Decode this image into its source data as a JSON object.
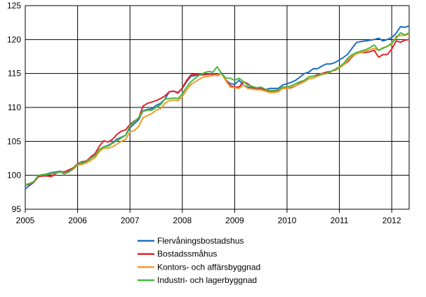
{
  "chart_data": {
    "type": "line",
    "title": "",
    "xlabel": "",
    "ylabel": "",
    "xlim": [
      2005,
      2012.333
    ],
    "ylim": [
      95,
      125
    ],
    "x_ticks": [
      "2005",
      "2006",
      "2007",
      "2008",
      "2009",
      "2010",
      "2011",
      "2012"
    ],
    "y_ticks": [
      "95",
      "100",
      "105",
      "110",
      "115",
      "120",
      "125"
    ],
    "grid": true,
    "legend_position": "bottom",
    "x_start": "2005-01",
    "x_frequency": "monthly",
    "series": [
      {
        "name": "Flervåningsbostadshus",
        "color": "#1f6fbf",
        "values": [
          98.0,
          98.5,
          99.0,
          100.0,
          100.1,
          100.2,
          100.4,
          100.5,
          100.6,
          100.4,
          100.7,
          101.0,
          101.6,
          101.8,
          102.0,
          102.5,
          102.9,
          103.8,
          104.2,
          104.4,
          104.8,
          105.3,
          105.6,
          105.9,
          107.0,
          107.6,
          108.2,
          109.5,
          109.7,
          109.8,
          110.3,
          110.6,
          111.2,
          112.3,
          112.4,
          112.2,
          112.8,
          113.8,
          114.6,
          114.7,
          114.8,
          114.8,
          114.9,
          115.0,
          114.8,
          115.1,
          114.0,
          113.5,
          113.4,
          114.0,
          113.3,
          113.0,
          112.9,
          112.8,
          112.8,
          112.6,
          112.8,
          112.8,
          112.8,
          113.3,
          113.5,
          113.7,
          114.0,
          114.5,
          115.0,
          115.2,
          115.7,
          115.7,
          116.1,
          116.4,
          116.4,
          116.6,
          117.0,
          117.4,
          117.9,
          118.8,
          119.6,
          119.7,
          119.8,
          119.9,
          120.0,
          120.2,
          119.8,
          120.0,
          120.3,
          120.9,
          121.9,
          121.8,
          122.0
        ]
      },
      {
        "name": "Bostadssmåhus",
        "color": "#e0252b",
        "values": [
          98.5,
          98.7,
          99.0,
          99.8,
          99.9,
          99.9,
          99.8,
          100.3,
          100.5,
          100.5,
          100.8,
          101.1,
          101.7,
          102.0,
          102.1,
          102.7,
          103.2,
          104.3,
          105.1,
          104.9,
          105.3,
          106.0,
          106.5,
          106.7,
          107.5,
          108.0,
          108.4,
          110.2,
          110.6,
          110.8,
          111.0,
          111.3,
          111.7,
          112.3,
          112.4,
          112.1,
          112.9,
          114.0,
          114.8,
          114.9,
          114.9,
          114.9,
          114.9,
          114.9,
          114.7,
          115.0,
          114.0,
          113.2,
          113.0,
          113.0,
          113.8,
          113.5,
          113.0,
          112.8,
          112.7,
          112.6,
          112.4,
          112.4,
          112.5,
          112.8,
          112.8,
          112.9,
          113.2,
          113.6,
          114.0,
          114.5,
          114.6,
          114.8,
          115.0,
          115.2,
          115.3,
          115.5,
          115.8,
          116.3,
          116.8,
          117.5,
          118.0,
          118.1,
          118.1,
          118.2,
          118.4,
          117.4,
          117.8,
          117.8,
          118.6,
          119.8,
          119.6,
          119.9,
          120.0
        ]
      },
      {
        "name": "Kontors- och affärsbyggnad",
        "color": "#f59a2c",
        "values": [
          98.6,
          98.8,
          99.1,
          100.0,
          100.1,
          100.1,
          100.2,
          100.4,
          100.5,
          100.3,
          100.5,
          100.9,
          101.5,
          101.6,
          101.8,
          102.2,
          102.6,
          103.5,
          104.0,
          104.0,
          104.2,
          104.6,
          105.0,
          105.3,
          106.4,
          106.6,
          107.2,
          108.5,
          108.8,
          109.1,
          109.6,
          109.8,
          110.6,
          111.0,
          111.1,
          111.0,
          111.6,
          112.6,
          113.4,
          113.8,
          114.2,
          114.5,
          114.6,
          114.7,
          114.8,
          115.0,
          113.9,
          113.0,
          112.9,
          112.8,
          113.3,
          112.8,
          112.7,
          112.6,
          112.6,
          112.4,
          112.2,
          112.2,
          112.3,
          112.8,
          112.8,
          113.0,
          113.2,
          113.5,
          113.8,
          114.2,
          114.3,
          114.6,
          114.8,
          115.0,
          115.2,
          115.6,
          115.8,
          116.3,
          117.0,
          117.6,
          117.9,
          118.1,
          118.3,
          118.5,
          118.7,
          118.4,
          118.8,
          119.0,
          119.3,
          120.5,
          120.6,
          120.6,
          120.8
        ]
      },
      {
        "name": "Industri- och lagerbyggnad",
        "color": "#4cb840",
        "values": [
          98.6,
          98.8,
          99.1,
          100.0,
          100.1,
          100.1,
          100.3,
          100.4,
          100.5,
          100.2,
          100.5,
          101.0,
          101.6,
          101.9,
          102.0,
          102.5,
          102.9,
          103.8,
          104.2,
          104.3,
          104.7,
          105.1,
          105.5,
          105.9,
          107.3,
          107.9,
          108.5,
          109.4,
          109.6,
          109.6,
          110.0,
          110.4,
          111.2,
          111.3,
          111.4,
          111.3,
          112.0,
          113.0,
          113.8,
          114.3,
          114.8,
          115.1,
          115.3,
          115.2,
          116.0,
          115.0,
          114.3,
          114.3,
          114.0,
          114.3,
          113.8,
          113.3,
          113.1,
          112.9,
          113.0,
          112.7,
          112.5,
          112.5,
          112.6,
          113.0,
          113.0,
          113.2,
          113.5,
          113.8,
          114.0,
          114.5,
          114.6,
          114.7,
          115.0,
          115.0,
          115.3,
          115.6,
          116.0,
          116.5,
          117.3,
          117.8,
          118.1,
          118.3,
          118.5,
          118.8,
          119.2,
          118.4,
          118.7,
          119.0,
          119.5,
          120.2,
          121.0,
          120.7,
          121.0
        ]
      }
    ]
  }
}
